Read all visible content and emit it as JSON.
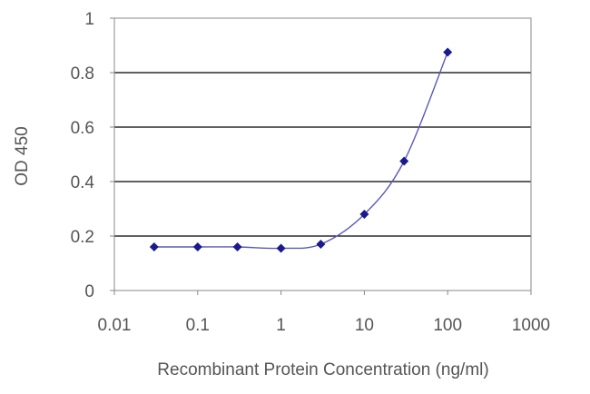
{
  "chart_data": {
    "type": "line",
    "title": "",
    "xlabel": "Recombinant Protein Concentration (ng/ml)",
    "ylabel": "OD 450",
    "x_scale": "log",
    "xlim": [
      0.01,
      1000
    ],
    "ylim": [
      0,
      1
    ],
    "x_ticks": [
      "0.01",
      "0.1",
      "1",
      "10",
      "100",
      "1000"
    ],
    "y_ticks": [
      "0",
      "0.2",
      "0.4",
      "0.6",
      "0.8",
      "1"
    ],
    "grid": "horizontal",
    "legend": "none",
    "series": [
      {
        "x": [
          0.03,
          0.1,
          0.3,
          1,
          3,
          10,
          30,
          100
        ],
        "y": [
          0.16,
          0.16,
          0.16,
          0.155,
          0.17,
          0.28,
          0.475,
          0.875
        ],
        "color": "#1a1a8c",
        "marker": "diamond"
      }
    ],
    "colors": {
      "gridline": "#000000",
      "plot_border": "#888888",
      "text": "#555555"
    }
  }
}
